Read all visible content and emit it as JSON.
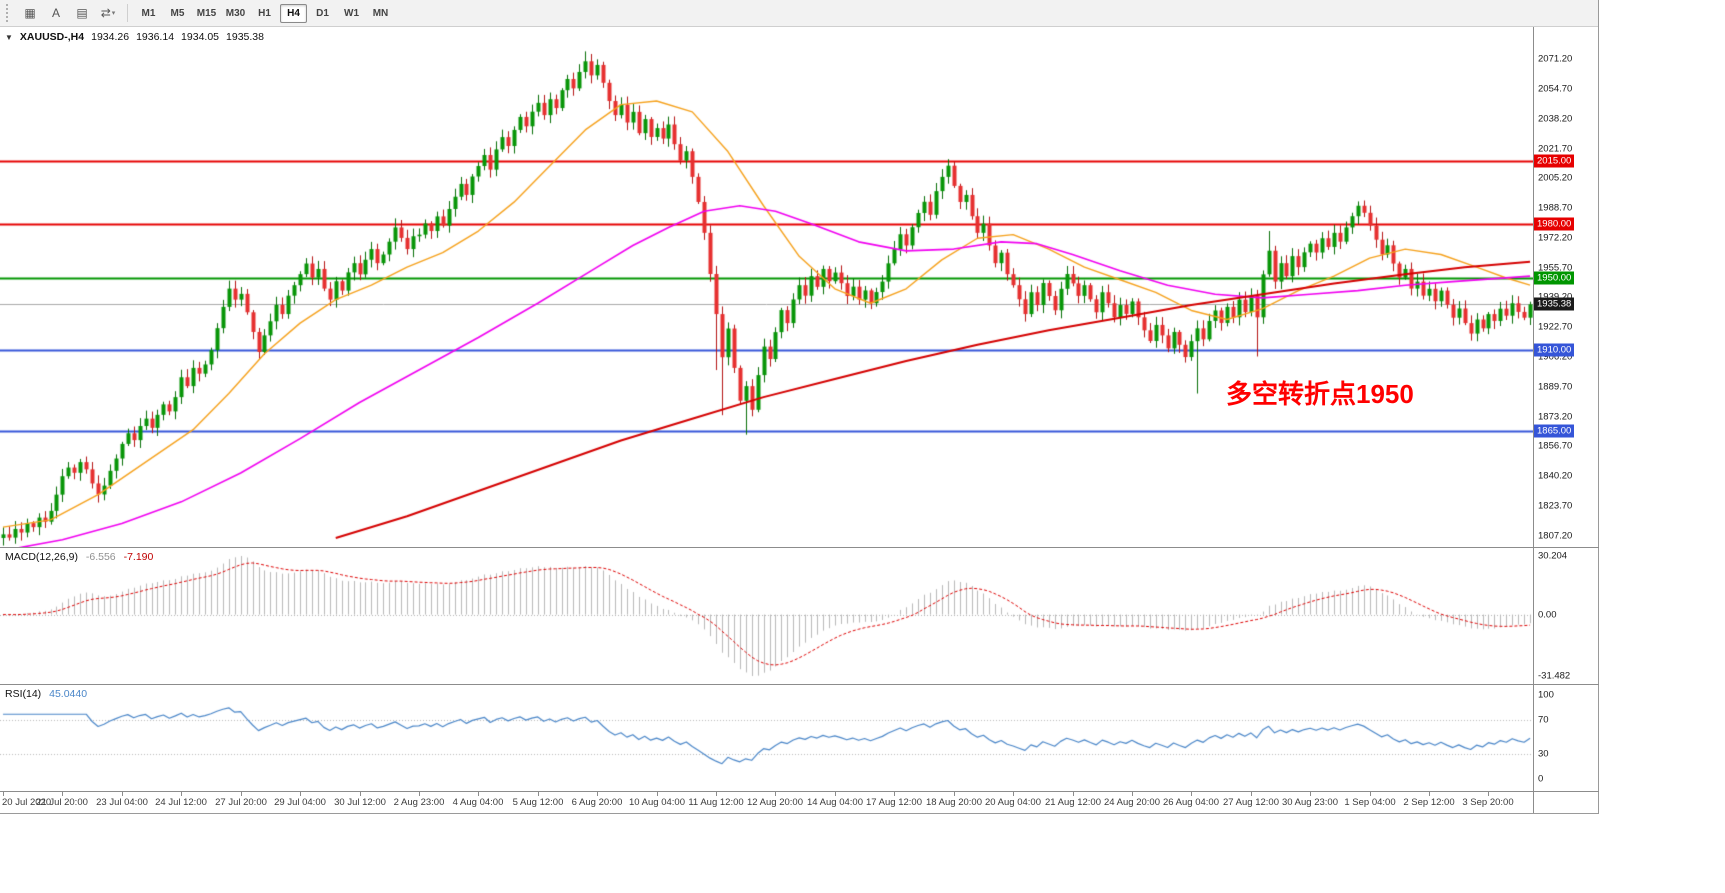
{
  "toolbar": {
    "buttons": [
      {
        "name": "tile-windows",
        "glyph": "▦",
        "caret": false
      },
      {
        "name": "text-cursor",
        "glyph": "A",
        "caret": false
      },
      {
        "name": "chart-panel",
        "glyph": "▤",
        "caret": false
      },
      {
        "name": "switch-symbol",
        "glyph": "⇄",
        "caret": true
      }
    ],
    "timeframes": [
      "M1",
      "M5",
      "M15",
      "M30",
      "H1",
      "H4",
      "D1",
      "W1",
      "MN"
    ],
    "active_timeframe": "H4"
  },
  "header": {
    "expand_glyph": "▼",
    "symbol_period": "XAUUSD-,H4",
    "open": "1934.26",
    "high": "1936.14",
    "low": "1934.05",
    "close": "1935.38"
  },
  "chart_data": {
    "type": "candlestick+indicators",
    "symbol": "XAUUSD-",
    "timeframe": "H4",
    "bars": {
      "closes": [
        1808.0,
        1806.2,
        1811.0,
        1809.0,
        1814.2,
        1812.0,
        1817.3,
        1815.0,
        1821.0,
        1830.0,
        1840.2,
        1845.0,
        1842.1,
        1848.0,
        1844.0,
        1836.2,
        1830.1,
        1835.0,
        1843.2,
        1850.0,
        1858.1,
        1864.0,
        1860.2,
        1868.0,
        1872.1,
        1867.0,
        1874.2,
        1880.0,
        1876.1,
        1884.0,
        1895.0,
        1890.1,
        1900.2,
        1897.0,
        1902.1,
        1910.0,
        1922.2,
        1934.0,
        1944.1,
        1938.0,
        1941.2,
        1931.0,
        1920.1,
        1909.0,
        1918.2,
        1926.0,
        1935.1,
        1930.0,
        1940.2,
        1946.0,
        1952.1,
        1958.0,
        1950.2,
        1955.0,
        1944.1,
        1938.0,
        1948.2,
        1943.0,
        1953.1,
        1958.2,
        1952.0,
        1960.1,
        1966.0,
        1958.2,
        1963.0,
        1970.1,
        1978.0,
        1972.2,
        1966.0,
        1973.1,
        1974.0,
        1980.2,
        1976.0,
        1984.1,
        1979.0,
        1988.2,
        1995.0,
        2002.1,
        1996.0,
        2006.2,
        2012.0,
        2018.1,
        2010.0,
        2021.2,
        2028.0,
        2023.1,
        2032.0,
        2039.2,
        2034.0,
        2042.1,
        2047.0,
        2040.2,
        2049.0,
        2044.1,
        2054.0,
        2060.2,
        2055.0,
        2064.1,
        2070.0,
        2062.2,
        2068.0,
        2058.1,
        2048.0,
        2040.2,
        2046.0,
        2036.1,
        2042.0,
        2030.2,
        2038.0,
        2028.1,
        2033.0,
        2027.2,
        2035.0,
        2024.1,
        2015.0,
        2020.2,
        2006.0,
        1992.1,
        1975.0,
        1952.2,
        1930.0,
        1906.1,
        1922.0,
        1900.2,
        1882.0,
        1890.1,
        1877.0,
        1896.2,
        1912.0,
        1905.1,
        1920.0,
        1932.2,
        1925.0,
        1938.1,
        1946.0,
        1940.2,
        1951.0,
        1945.1,
        1955.0,
        1948.2,
        1953.0,
        1947.1,
        1940.0,
        1945.2,
        1938.0,
        1943.1,
        1936.0,
        1942.2,
        1948.0,
        1958.1,
        1966.0,
        1974.2,
        1968.0,
        1978.1,
        1986.0,
        1992.2,
        1985.0,
        1998.1,
        2006.0,
        2012.2,
        2001.0,
        1992.1,
        1996.0,
        1984.2,
        1975.0,
        1980.1,
        1968.0,
        1958.2,
        1964.0,
        1952.1,
        1946.0,
        1938.2,
        1930.0,
        1942.1,
        1935.0,
        1947.2,
        1940.0,
        1932.1,
        1944.0,
        1952.2,
        1947.0,
        1940.1,
        1946.0,
        1938.2,
        1931.0,
        1942.1,
        1936.0,
        1928.2,
        1935.0,
        1930.1,
        1937.0,
        1928.2,
        1921.0,
        1915.1,
        1924.0,
        1918.2,
        1911.0,
        1920.1,
        1913.0,
        1906.2,
        1915.0,
        1922.1,
        1916.0,
        1926.2,
        1932.0,
        1925.1,
        1934.0,
        1928.2,
        1938.0,
        1931.1,
        1940.0,
        1928.2,
        1952.0,
        1965.1,
        1948.0,
        1958.2,
        1951.0,
        1962.1,
        1956.0,
        1964.2,
        1969.0,
        1964.1,
        1972.0,
        1967.2,
        1975.0,
        1970.1,
        1978.0,
        1984.2,
        1990.0,
        1986.1,
        1979.0,
        1971.2,
        1963.0,
        1968.1,
        1958.0,
        1950.2,
        1955.0,
        1944.1,
        1948.0,
        1940.2,
        1944.0,
        1937.1,
        1943.0,
        1935.2,
        1928.0,
        1933.1,
        1925.0,
        1919.2,
        1927.0,
        1922.1,
        1930.0,
        1926.2,
        1933.0,
        1929.1,
        1936.0,
        1931.2,
        1928.0,
        1935.4
      ],
      "wick_overrides": [
        {
          "i": 66,
          "h": 1983.0
        },
        {
          "i": 98,
          "h": 2075.5
        },
        {
          "i": 120,
          "l": 1899.0
        },
        {
          "i": 121,
          "l": 1874.0
        },
        {
          "i": 125,
          "l": 1863.2
        },
        {
          "i": 159,
          "h": 2015.8
        },
        {
          "i": 201,
          "l": 1886.0
        },
        {
          "i": 211,
          "l": 1906.5
        },
        {
          "i": 213,
          "h": 1976.0
        },
        {
          "i": 228,
          "h": 1992.4
        }
      ]
    },
    "candle_colors": {
      "up_fill": "#089608",
      "up_stroke": "#076f07",
      "down_fill": "#e63030",
      "down_stroke": "#b51414"
    },
    "price_axis": {
      "min": 1801,
      "max": 2089,
      "labels": [
        "2071.20",
        "2054.70",
        "2038.20",
        "2021.70",
        "2005.20",
        "1988.70",
        "1972.20",
        "1955.70",
        "1939.20",
        "1922.70",
        "1906.20",
        "1889.70",
        "1873.20",
        "1856.70",
        "1840.20",
        "1823.70",
        "1807.20"
      ]
    },
    "levels": [
      {
        "value": 2015.0,
        "label": "2015.00",
        "color": "#e60000",
        "width": 2
      },
      {
        "value": 1980.0,
        "label": "1980.00",
        "color": "#e60000",
        "width": 2
      },
      {
        "value": 1950.0,
        "label": "1950.00",
        "color": "#009600",
        "width": 2
      },
      {
        "value": 1910.0,
        "label": "1910.00",
        "color": "#3555d8",
        "width": 2
      },
      {
        "value": 1865.0,
        "label": "1865.00",
        "color": "#3555d8",
        "width": 2
      }
    ],
    "bid": {
      "value": 1935.38,
      "label": "1935.38",
      "line_color": "#a8a8a8",
      "badge_color": "#1a1a1a"
    },
    "moving_averages": [
      {
        "name": "ma-fast-orange",
        "color": "#f5a11c",
        "width": 1.4,
        "points": [
          [
            0,
            1812
          ],
          [
            8,
            1816
          ],
          [
            16,
            1830
          ],
          [
            24,
            1848
          ],
          [
            32,
            1866
          ],
          [
            38,
            1886
          ],
          [
            44,
            1908
          ],
          [
            50,
            1925
          ],
          [
            56,
            1938
          ],
          [
            62,
            1946
          ],
          [
            68,
            1956
          ],
          [
            74,
            1964
          ],
          [
            80,
            1976
          ],
          [
            86,
            1992
          ],
          [
            92,
            2012
          ],
          [
            98,
            2032
          ],
          [
            104,
            2046
          ],
          [
            110,
            2048
          ],
          [
            116,
            2042
          ],
          [
            122,
            2020
          ],
          [
            128,
            1990
          ],
          [
            134,
            1962
          ],
          [
            140,
            1944
          ],
          [
            146,
            1936
          ],
          [
            152,
            1944
          ],
          [
            158,
            1960
          ],
          [
            164,
            1972
          ],
          [
            170,
            1974
          ],
          [
            176,
            1966
          ],
          [
            182,
            1956
          ],
          [
            188,
            1949
          ],
          [
            194,
            1942
          ],
          [
            200,
            1932
          ],
          [
            206,
            1927
          ],
          [
            212,
            1933
          ],
          [
            218,
            1943
          ],
          [
            224,
            1951
          ],
          [
            230,
            1961
          ],
          [
            236,
            1966
          ],
          [
            242,
            1963
          ],
          [
            248,
            1956
          ],
          [
            253,
            1950
          ],
          [
            257,
            1946
          ]
        ]
      },
      {
        "name": "ma-mid-magenta",
        "color": "#f000f0",
        "width": 1.6,
        "points": [
          [
            0,
            1799
          ],
          [
            10,
            1805
          ],
          [
            20,
            1814
          ],
          [
            30,
            1826
          ],
          [
            40,
            1842
          ],
          [
            50,
            1861
          ],
          [
            60,
            1881
          ],
          [
            70,
            1899
          ],
          [
            80,
            1917
          ],
          [
            90,
            1936
          ],
          [
            100,
            1956
          ],
          [
            106,
            1968
          ],
          [
            112,
            1978
          ],
          [
            118,
            1987
          ],
          [
            124,
            1990
          ],
          [
            130,
            1987
          ],
          [
            136,
            1980
          ],
          [
            144,
            1970
          ],
          [
            152,
            1965
          ],
          [
            160,
            1966
          ],
          [
            168,
            1970
          ],
          [
            174,
            1969
          ],
          [
            180,
            1963
          ],
          [
            188,
            1954
          ],
          [
            196,
            1946
          ],
          [
            204,
            1941
          ],
          [
            212,
            1939
          ],
          [
            220,
            1941
          ],
          [
            228,
            1943
          ],
          [
            236,
            1946
          ],
          [
            244,
            1948
          ],
          [
            257,
            1951
          ]
        ]
      },
      {
        "name": "ma-slow-red",
        "color": "#d40000",
        "width": 2,
        "points": [
          [
            56,
            1806
          ],
          [
            68,
            1818
          ],
          [
            80,
            1832
          ],
          [
            92,
            1846
          ],
          [
            104,
            1860
          ],
          [
            116,
            1872
          ],
          [
            128,
            1884
          ],
          [
            140,
            1894
          ],
          [
            152,
            1904
          ],
          [
            164,
            1913
          ],
          [
            176,
            1921
          ],
          [
            188,
            1928
          ],
          [
            200,
            1935
          ],
          [
            212,
            1941
          ],
          [
            224,
            1947
          ],
          [
            236,
            1952
          ],
          [
            246,
            1956
          ],
          [
            257,
            1959
          ]
        ]
      }
    ],
    "macd": {
      "label": "MACD(12,26,9)",
      "value_main": "-6.556",
      "value_signal": "-7.190",
      "fast": 12,
      "slow": 26,
      "signal_period": 9,
      "axis_max": 30.204,
      "axis_min": -31.482,
      "axis_labels": [
        "30.204",
        "0.00",
        "-31.482"
      ],
      "hist_color": "#b8b8b8",
      "signal_color": "#dd0000"
    },
    "rsi": {
      "label": "RSI(14)",
      "value": "45.0440",
      "period": 14,
      "levels": [
        70,
        30
      ],
      "color": "#4a86c8",
      "axis_labels": [
        100,
        70,
        30,
        0
      ]
    },
    "time_axis": [
      "20 Jul 2020",
      "21 Jul 20:00",
      "23 Jul 04:00",
      "24 Jul 12:00",
      "27 Jul 20:00",
      "29 Jul 04:00",
      "30 Jul 12:00",
      "2 Aug 23:00",
      "4 Aug 04:00",
      "5 Aug 12:00",
      "6 Aug 20:00",
      "10 Aug 04:00",
      "11 Aug 12:00",
      "12 Aug 20:00",
      "14 Aug 04:00",
      "17 Aug 12:00",
      "18 Aug 20:00",
      "20 Aug 04:00",
      "21 Aug 12:00",
      "24 Aug 20:00",
      "26 Aug 04:00",
      "27 Aug 12:00",
      "30 Aug 23:00",
      "1 Sep 04:00",
      "2 Sep 12:00",
      "3 Sep 20:00"
    ],
    "annotation": {
      "text": "多空转折点1950",
      "color": "#ff0000"
    }
  }
}
